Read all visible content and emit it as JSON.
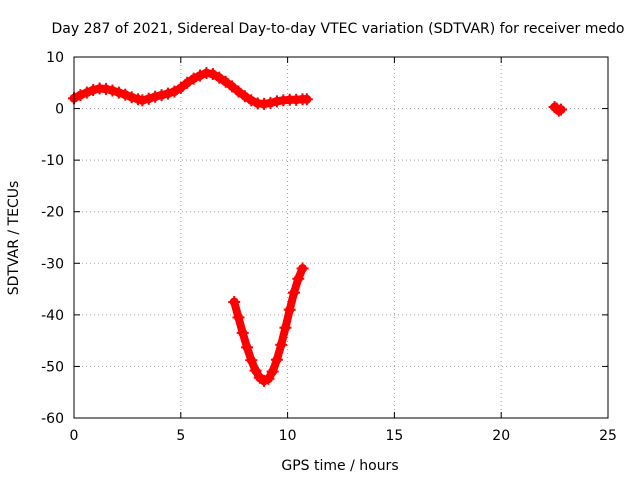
{
  "chart_data": {
    "type": "scatter",
    "title": "Day 287 of 2021, Sidereal Day-to-day VTEC variation (SDTVAR) for receiver medo",
    "xlabel": "GPS time / hours",
    "ylabel": "SDTVAR / TECUs",
    "xlim": [
      0,
      25
    ],
    "ylim": [
      -60,
      10
    ],
    "xticks": [
      0,
      5,
      10,
      15,
      20,
      25
    ],
    "yticks": [
      10,
      0,
      -10,
      -20,
      -30,
      -40,
      -50,
      -60
    ],
    "xtick_labels": [
      "0",
      "5",
      "10",
      "15",
      "20",
      "25"
    ],
    "ytick_labels": [
      "10",
      "0",
      "-10",
      "-20",
      "-30",
      "-40",
      "-50",
      "-60"
    ],
    "grid": true,
    "marker_color": "#ff0000",
    "series": [
      {
        "points": [
          [
            0.0,
            2.0
          ],
          [
            0.3,
            2.6
          ],
          [
            0.6,
            3.1
          ],
          [
            0.9,
            3.6
          ],
          [
            1.2,
            3.9
          ],
          [
            1.5,
            3.8
          ],
          [
            1.8,
            3.5
          ],
          [
            2.1,
            3.1
          ],
          [
            2.4,
            2.7
          ],
          [
            2.7,
            2.2
          ],
          [
            3.0,
            1.8
          ],
          [
            3.2,
            1.6
          ],
          [
            3.5,
            1.9
          ],
          [
            3.8,
            2.3
          ],
          [
            4.1,
            2.6
          ],
          [
            4.4,
            2.9
          ],
          [
            4.7,
            3.3
          ],
          [
            5.0,
            4.0
          ],
          [
            5.3,
            5.0
          ],
          [
            5.6,
            5.8
          ],
          [
            5.9,
            6.4
          ],
          [
            6.2,
            6.9
          ],
          [
            6.5,
            6.7
          ],
          [
            6.8,
            6.0
          ],
          [
            7.1,
            5.2
          ],
          [
            7.4,
            4.3
          ],
          [
            7.7,
            3.3
          ],
          [
            8.0,
            2.4
          ],
          [
            8.3,
            1.6
          ],
          [
            8.6,
            1.0
          ],
          [
            8.9,
            0.9
          ],
          [
            9.2,
            1.1
          ],
          [
            9.5,
            1.4
          ],
          [
            9.8,
            1.6
          ],
          [
            10.1,
            1.7
          ],
          [
            10.4,
            1.7
          ],
          [
            10.7,
            1.8
          ],
          [
            10.9,
            1.8
          ],
          [
            22.5,
            0.3
          ],
          [
            22.6,
            0.0
          ],
          [
            22.7,
            -0.4
          ],
          [
            22.8,
            -0.2
          ]
        ]
      },
      {
        "points": [
          [
            7.5,
            -37.5
          ],
          [
            7.7,
            -40.5
          ],
          [
            7.9,
            -43.5
          ],
          [
            8.1,
            -46.3
          ],
          [
            8.3,
            -48.8
          ],
          [
            8.5,
            -50.8
          ],
          [
            8.7,
            -52.2
          ],
          [
            8.9,
            -52.8
          ],
          [
            9.1,
            -52.4
          ],
          [
            9.3,
            -51.0
          ],
          [
            9.5,
            -48.7
          ],
          [
            9.7,
            -45.8
          ],
          [
            9.9,
            -42.5
          ],
          [
            10.1,
            -39.0
          ],
          [
            10.3,
            -35.7
          ],
          [
            10.5,
            -33.0
          ],
          [
            10.7,
            -31.0
          ]
        ]
      }
    ]
  }
}
